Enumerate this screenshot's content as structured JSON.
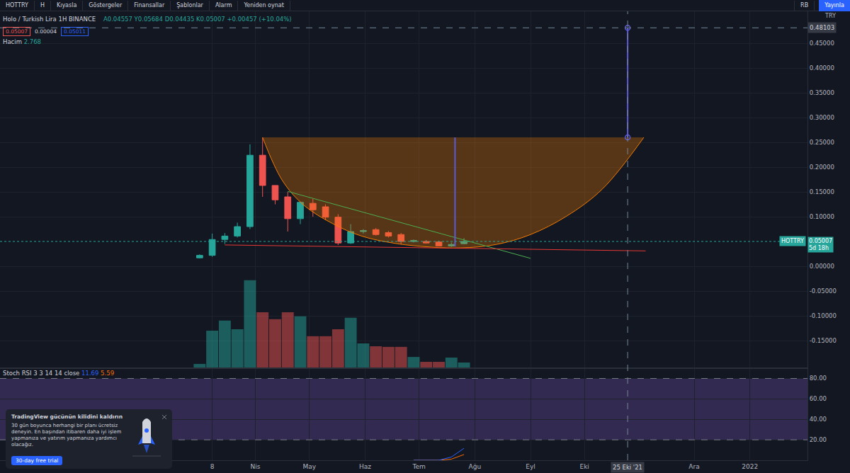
{
  "toolbar": {
    "left": [
      "HOTTRY",
      "H",
      "Kıyasla",
      "Göstergeler",
      "Finansallar",
      "Şablonlar",
      "Alarm",
      "Yeniden oynat"
    ],
    "user": "RB",
    "button": "Yayınla"
  },
  "promo": {
    "title": "TradingView gücünün kilidini kaldırın",
    "body": "30 gün boyunca herhangi bir planı ücretsiz deneyin. En başından itibaren daha iyi işlem yapmanıza ve yatırım yapmanıza yardımcı olacağız.",
    "button": "30-day free trial"
  },
  "chart_data": {
    "type": "candlestick",
    "header": {
      "symbol_name": "Holo / Turkish Lira",
      "interval": "1H",
      "exchange": "BINANCE",
      "ohlc_prefixes": [
        "A",
        "Y",
        "D",
        "K"
      ],
      "change": "+0.00457 (+10.04%)",
      "order_boxes": [
        "0.05007",
        "0.00004",
        "0.05011"
      ],
      "volume_label": "Hacim",
      "currency": "TRY"
    },
    "x": [
      "2021-03-01",
      "2021-03-08",
      "2021-03-15",
      "2021-03-22",
      "2021-03-29",
      "2021-04-05",
      "2021-04-12",
      "2021-04-19",
      "2021-04-26",
      "2021-05-03",
      "2021-05-10",
      "2021-05-17",
      "2021-05-24",
      "2021-05-31",
      "2021-06-07",
      "2021-06-14",
      "2021-06-21",
      "2021-06-28",
      "2021-07-05",
      "2021-07-12",
      "2021-07-19",
      "2021-07-26"
    ],
    "open": [
      0.017,
      0.022,
      0.054,
      0.061,
      0.08,
      0.224,
      0.163,
      0.14,
      0.096,
      0.127,
      0.12,
      0.099,
      0.047,
      0.07,
      0.074,
      0.068,
      0.064,
      0.05,
      0.05,
      0.049,
      0.041,
      0.04557
    ],
    "high": [
      0.024,
      0.066,
      0.067,
      0.088,
      0.246,
      0.26,
      0.157,
      0.15,
      0.131,
      0.136,
      0.125,
      0.105,
      0.085,
      0.075,
      0.077,
      0.071,
      0.067,
      0.054,
      0.053,
      0.051,
      0.048,
      0.05684
    ],
    "low": [
      0.016,
      0.019,
      0.045,
      0.058,
      0.075,
      0.14,
      0.125,
      0.07,
      0.085,
      0.1,
      0.093,
      0.043,
      0.045,
      0.066,
      0.062,
      0.058,
      0.044,
      0.048,
      0.046,
      0.04,
      0.039,
      0.04435
    ],
    "close": [
      0.022,
      0.054,
      0.061,
      0.08,
      0.224,
      0.163,
      0.134,
      0.096,
      0.129,
      0.114,
      0.099,
      0.047,
      0.07,
      0.072,
      0.064,
      0.061,
      0.05,
      0.052,
      0.047,
      0.041,
      0.044,
      0.05007
    ],
    "volume": [
      2.1,
      18.3,
      23.2,
      19.0,
      42.9,
      27.3,
      23.9,
      27.3,
      25.3,
      15.6,
      15.6,
      19.0,
      24.6,
      12.1,
      10.7,
      10.4,
      10.4,
      5.5,
      3.1,
      3.1,
      5.2,
      2.768
    ],
    "volume_ylim": [
      0,
      174
    ],
    "xlim": [
      "2020-11-10",
      "2022-02-02"
    ],
    "xticks": [
      {
        "value": "2021-03-08",
        "label": "8"
      },
      {
        "value": "2021-04-01",
        "label": "Nis"
      },
      {
        "value": "2021-05-01",
        "label": "May"
      },
      {
        "value": "2021-06-01",
        "label": "Haz"
      },
      {
        "value": "2021-07-01",
        "label": "Tem"
      },
      {
        "value": "2021-08-01",
        "label": "Ağu"
      },
      {
        "value": "2021-09-01",
        "label": "Eyl"
      },
      {
        "value": "2021-10-01",
        "label": "Eki"
      },
      {
        "value": "2021-12-01",
        "label": "Ara"
      },
      {
        "value": "2022-01-01",
        "label": "2022"
      }
    ],
    "ylim": [
      -0.2057,
      0.5143
    ],
    "yticks": [
      {
        "value": 0.45,
        "label": "0.45000"
      },
      {
        "value": 0.4,
        "label": "0.40000"
      },
      {
        "value": 0.35,
        "label": "0.35000"
      },
      {
        "value": 0.3,
        "label": "0.30000"
      },
      {
        "value": 0.25,
        "label": "0.25000"
      },
      {
        "value": 0.2,
        "label": "0.20000"
      },
      {
        "value": 0.15,
        "label": "0.15000"
      },
      {
        "value": 0.1,
        "label": "0.10000"
      },
      {
        "value": 0,
        "label": "0.00000"
      },
      {
        "value": -0.05,
        "label": "-0.05000"
      },
      {
        "value": -0.1,
        "label": "-0.10000"
      },
      {
        "value": -0.15,
        "label": "-0.15000"
      }
    ],
    "grid": true,
    "price_tag": {
      "symbol": "HOTTRY",
      "countdown": "5d 18h"
    },
    "crosshair": {
      "x": "2021-10-25",
      "x_label": "25 Eki '21",
      "y": 0.48103
    },
    "drawings": {
      "cup": {
        "x": [
          "2021-04-05",
          "2021-04-16",
          "2021-04-28",
          "2021-05-14",
          "2021-05-30",
          "2021-06-18",
          "2021-07-08",
          "2021-07-24",
          "2021-08-13",
          "2021-09-01",
          "2021-09-21",
          "2021-10-11",
          "2021-11-03"
        ],
        "y": [
          0.26,
          0.173,
          0.123,
          0.086,
          0.061,
          0.046,
          0.0386,
          0.037,
          0.044,
          0.064,
          0.101,
          0.156,
          0.26
        ]
      },
      "depth_line": {
        "x": "2021-07-21",
        "y": [
          0.04,
          0.26
        ]
      },
      "target_line": {
        "x": "2021-10-25",
        "y": [
          0.26,
          0.48103
        ]
      },
      "green_trend": {
        "x": [
          "2021-04-19",
          "2021-09-01"
        ],
        "y": [
          0.151,
          0.016
        ]
      },
      "red_trend": {
        "x": [
          "2021-03-15",
          "2021-11-04"
        ],
        "y": [
          0.043,
          0.031
        ]
      }
    },
    "stoch": {
      "label": "Stoch RSI 3 3 14 14 close",
      "x": [
        "2021-06-28",
        "2021-07-05",
        "2021-07-12",
        "2021-07-19",
        "2021-07-26"
      ],
      "k": [
        0,
        0,
        0,
        3.2,
        11.69
      ],
      "d": [
        0,
        0,
        0,
        1.1,
        5.59
      ],
      "band": [
        20,
        80
      ]
    },
    "y2lim": [
      0,
      90
    ],
    "y2ticks": [
      {
        "value": 80,
        "label": "80.00"
      },
      {
        "value": 60,
        "label": "60.00"
      },
      {
        "value": 40,
        "label": "40.00"
      },
      {
        "value": 20,
        "label": "20.00"
      }
    ]
  }
}
